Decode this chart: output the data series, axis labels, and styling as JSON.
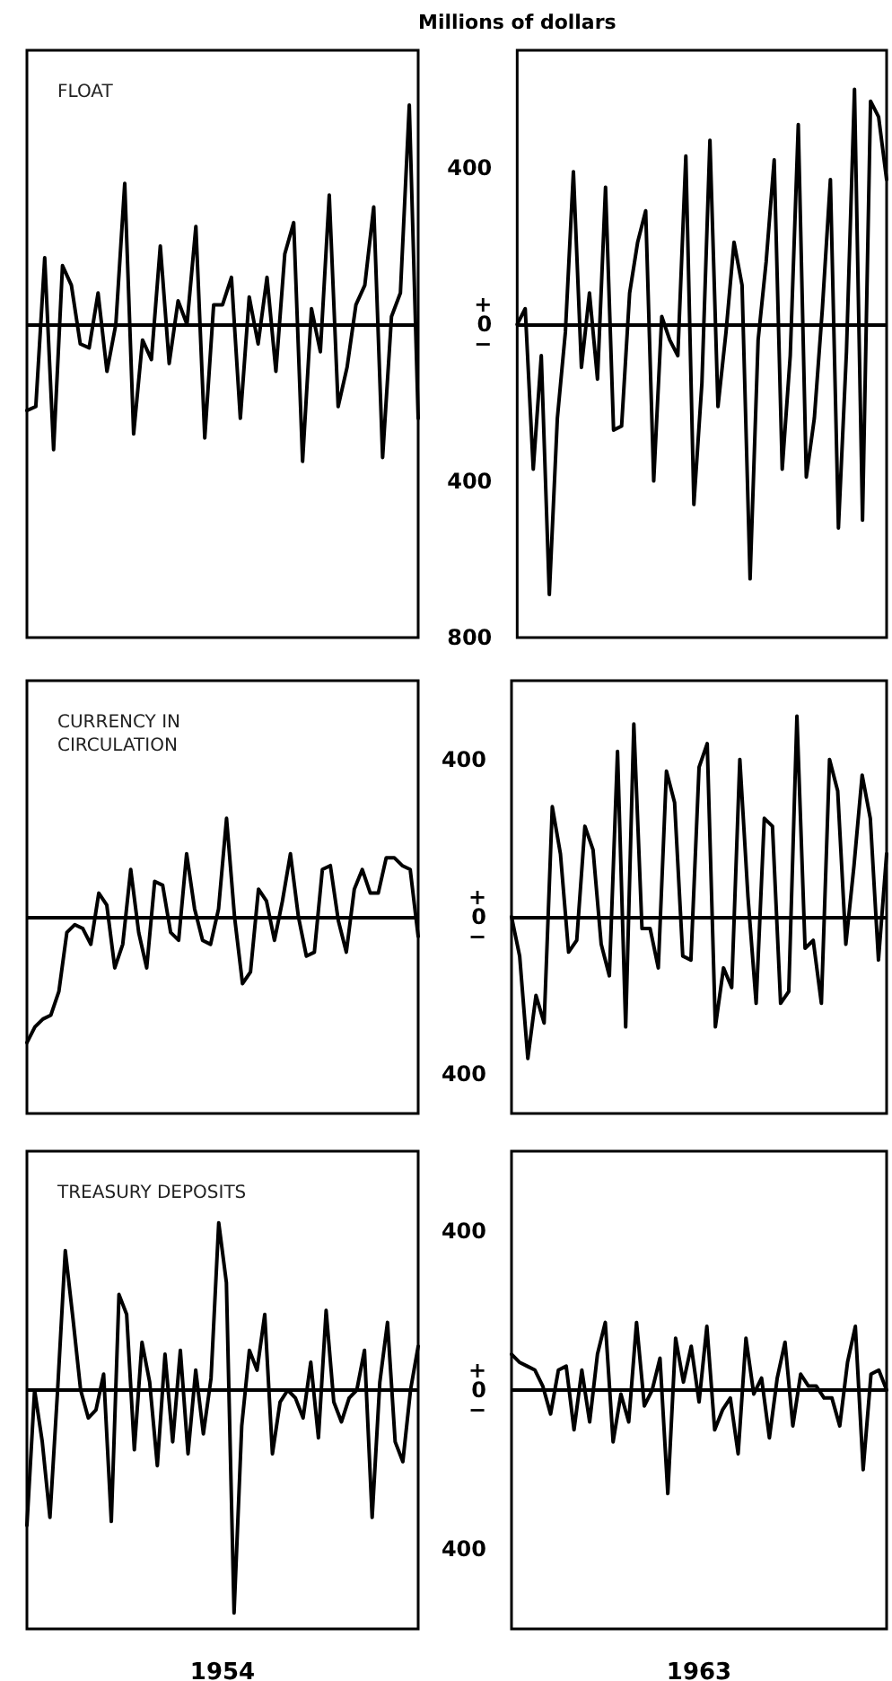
{
  "chart_data": [
    {
      "type": "line",
      "title": "FLOAT",
      "categories": [
        null,
        null,
        null,
        null,
        null,
        null,
        null,
        null,
        null,
        null,
        null,
        null,
        null,
        null,
        null,
        null,
        null,
        null,
        null,
        null,
        null,
        null,
        null,
        null,
        null,
        null,
        null,
        null,
        null,
        null,
        null,
        null,
        null,
        null,
        null,
        null,
        null,
        null,
        null,
        null,
        null,
        null,
        null,
        null,
        null
      ],
      "values": [
        -220,
        -210,
        170,
        -320,
        150,
        100,
        -50,
        -60,
        80,
        -120,
        0,
        360,
        -280,
        -40,
        -90,
        200,
        -100,
        60,
        0,
        250,
        -290,
        50,
        50,
        120,
        -240,
        70,
        -50,
        120,
        -120,
        180,
        260,
        -350,
        40,
        -70,
        330,
        -210,
        -110,
        50,
        100,
        300,
        -340,
        20,
        80,
        560,
        -240
      ],
      "color": "#000000",
      "ylim": [
        -800,
        700
      ],
      "tick_labels": false,
      "grid": false,
      "line_style": "solid",
      "ref_lines": [
        {
          "axis": "y",
          "value": 0
        }
      ]
    },
    {
      "type": "line",
      "ylabel": "Millions of dollars",
      "categories": [
        null,
        null,
        null,
        null,
        null,
        null,
        null,
        null,
        null,
        null,
        null,
        null,
        null,
        null,
        null,
        null,
        null,
        null,
        null,
        null,
        null,
        null,
        null,
        null,
        null,
        null,
        null,
        null,
        null,
        null,
        null,
        null,
        null,
        null,
        null,
        null,
        null,
        null,
        null,
        null,
        null,
        null,
        null,
        null,
        null,
        null,
        null
      ],
      "values": [
        0,
        40,
        -370,
        -80,
        -690,
        -240,
        -20,
        390,
        -110,
        80,
        -140,
        350,
        -270,
        -260,
        80,
        210,
        290,
        -400,
        20,
        -40,
        -80,
        430,
        -460,
        -150,
        470,
        -210,
        -20,
        210,
        100,
        -650,
        -40,
        160,
        420,
        -370,
        -80,
        510,
        -390,
        -240,
        40,
        370,
        -520,
        -70,
        600,
        -500,
        570,
        530,
        370
      ],
      "color": "#000000",
      "ylim": [
        -800,
        700
      ],
      "yticks": [
        {
          "value": 400,
          "label": "400"
        },
        {
          "value": 0,
          "label": "+\n0\n−"
        },
        {
          "value": -400,
          "label": "400"
        },
        {
          "value": -800,
          "label": "800"
        }
      ],
      "tick_labels": "y",
      "grid": false,
      "line_style": "solid",
      "ref_lines": [
        {
          "axis": "y",
          "value": 0
        }
      ]
    },
    {
      "type": "line",
      "title": "CURRENCY IN CIRCULATION",
      "categories": [
        null,
        null,
        null,
        null,
        null,
        null,
        null,
        null,
        null,
        null,
        null,
        null,
        null,
        null,
        null,
        null,
        null,
        null,
        null,
        null,
        null,
        null,
        null,
        null,
        null,
        null,
        null,
        null,
        null,
        null,
        null,
        null,
        null,
        null,
        null,
        null,
        null,
        null,
        null,
        null,
        null,
        null,
        null,
        null,
        null,
        null,
        null,
        null,
        null,
        null
      ],
      "values": [
        -320,
        -280,
        -260,
        -250,
        -190,
        -40,
        -20,
        -30,
        -70,
        60,
        30,
        -130,
        -70,
        120,
        -40,
        -130,
        90,
        80,
        -40,
        -60,
        160,
        20,
        -60,
        -70,
        20,
        250,
        0,
        -170,
        -140,
        70,
        40,
        -60,
        40,
        160,
        0,
        -100,
        -90,
        120,
        130,
        -10,
        -90,
        70,
        120,
        60,
        60,
        150,
        150,
        130,
        120,
        -50
      ],
      "color": "#000000",
      "ylim": [
        -500,
        600
      ],
      "tick_labels": false,
      "grid": false,
      "line_style": "solid",
      "ref_lines": [
        {
          "axis": "y",
          "value": 0
        }
      ]
    },
    {
      "type": "line",
      "categories": [
        null,
        null,
        null,
        null,
        null,
        null,
        null,
        null,
        null,
        null,
        null,
        null,
        null,
        null,
        null,
        null,
        null,
        null,
        null,
        null,
        null,
        null,
        null,
        null,
        null,
        null,
        null,
        null,
        null,
        null,
        null,
        null,
        null,
        null,
        null,
        null,
        null,
        null,
        null,
        null,
        null,
        null,
        null,
        null,
        null,
        null,
        null
      ],
      "values": [
        0,
        -100,
        -360,
        -200,
        -270,
        280,
        160,
        -90,
        -60,
        230,
        170,
        -70,
        -150,
        420,
        -280,
        490,
        -30,
        -30,
        -130,
        370,
        290,
        -100,
        -110,
        380,
        440,
        -280,
        -130,
        -180,
        400,
        50,
        -220,
        250,
        230,
        -220,
        -190,
        510,
        -80,
        -60,
        -220,
        400,
        320,
        -70,
        130,
        360,
        250,
        -110,
        160
      ],
      "color": "#000000",
      "ylim": [
        -500,
        600
      ],
      "yticks": [
        {
          "value": 400,
          "label": "400"
        },
        {
          "value": 0,
          "label": "+\n0\n−"
        },
        {
          "value": -400,
          "label": "400"
        }
      ],
      "tick_labels": "y",
      "grid": false,
      "line_style": "solid",
      "ref_lines": [
        {
          "axis": "y",
          "value": 0
        }
      ]
    },
    {
      "type": "line",
      "title": "TREASURY DEPOSITS",
      "xlabel": "1954",
      "categories": [
        null,
        null,
        null,
        null,
        null,
        null,
        null,
        null,
        null,
        null,
        null,
        null,
        null,
        null,
        null,
        null,
        null,
        null,
        null,
        null,
        null,
        null,
        null,
        null,
        null,
        null,
        null,
        null,
        null,
        null,
        null,
        null,
        null,
        null,
        null,
        null,
        null,
        null,
        null,
        null,
        null,
        null,
        null,
        null,
        null,
        null,
        null,
        null,
        null,
        null,
        null,
        null
      ],
      "values": [
        -340,
        0,
        -130,
        -320,
        0,
        350,
        180,
        0,
        -70,
        -50,
        40,
        -330,
        240,
        190,
        -150,
        120,
        20,
        -190,
        90,
        -130,
        100,
        -160,
        50,
        -110,
        30,
        420,
        270,
        -560,
        -90,
        100,
        50,
        190,
        -160,
        -30,
        0,
        -20,
        -70,
        70,
        -120,
        200,
        -30,
        -80,
        -20,
        0,
        100,
        -320,
        20,
        170,
        -130,
        -180,
        0,
        110
      ],
      "color": "#000000",
      "ylim": [
        -600,
        600
      ],
      "tick_labels": false,
      "grid": false,
      "line_style": "solid",
      "ref_lines": [
        {
          "axis": "y",
          "value": 0
        }
      ]
    },
    {
      "type": "line",
      "xlabel": "1963",
      "categories": [
        null,
        null,
        null,
        null,
        null,
        null,
        null,
        null,
        null,
        null,
        null,
        null,
        null,
        null,
        null,
        null,
        null,
        null,
        null,
        null,
        null,
        null,
        null,
        null,
        null,
        null,
        null,
        null,
        null,
        null,
        null,
        null,
        null,
        null,
        null,
        null,
        null,
        null,
        null,
        null,
        null,
        null,
        null,
        null,
        null,
        null,
        null,
        null,
        null
      ],
      "values": [
        90,
        70,
        60,
        50,
        10,
        -60,
        50,
        60,
        -100,
        50,
        -80,
        90,
        170,
        -130,
        -10,
        -80,
        170,
        -40,
        0,
        80,
        -260,
        130,
        20,
        110,
        -30,
        160,
        -100,
        -50,
        -20,
        -160,
        130,
        -10,
        30,
        -120,
        30,
        120,
        -90,
        40,
        10,
        10,
        -20,
        -20,
        -90,
        70,
        160,
        -200,
        40,
        50,
        0
      ],
      "color": "#000000",
      "ylim": [
        -600,
        600
      ],
      "yticks": [
        {
          "value": 400,
          "label": "400"
        },
        {
          "value": 0,
          "label": "+\n0\n−"
        },
        {
          "value": -400,
          "label": "400"
        }
      ],
      "tick_labels": "y",
      "grid": false,
      "line_style": "solid",
      "ref_lines": [
        {
          "axis": "y",
          "value": 0
        }
      ]
    }
  ]
}
